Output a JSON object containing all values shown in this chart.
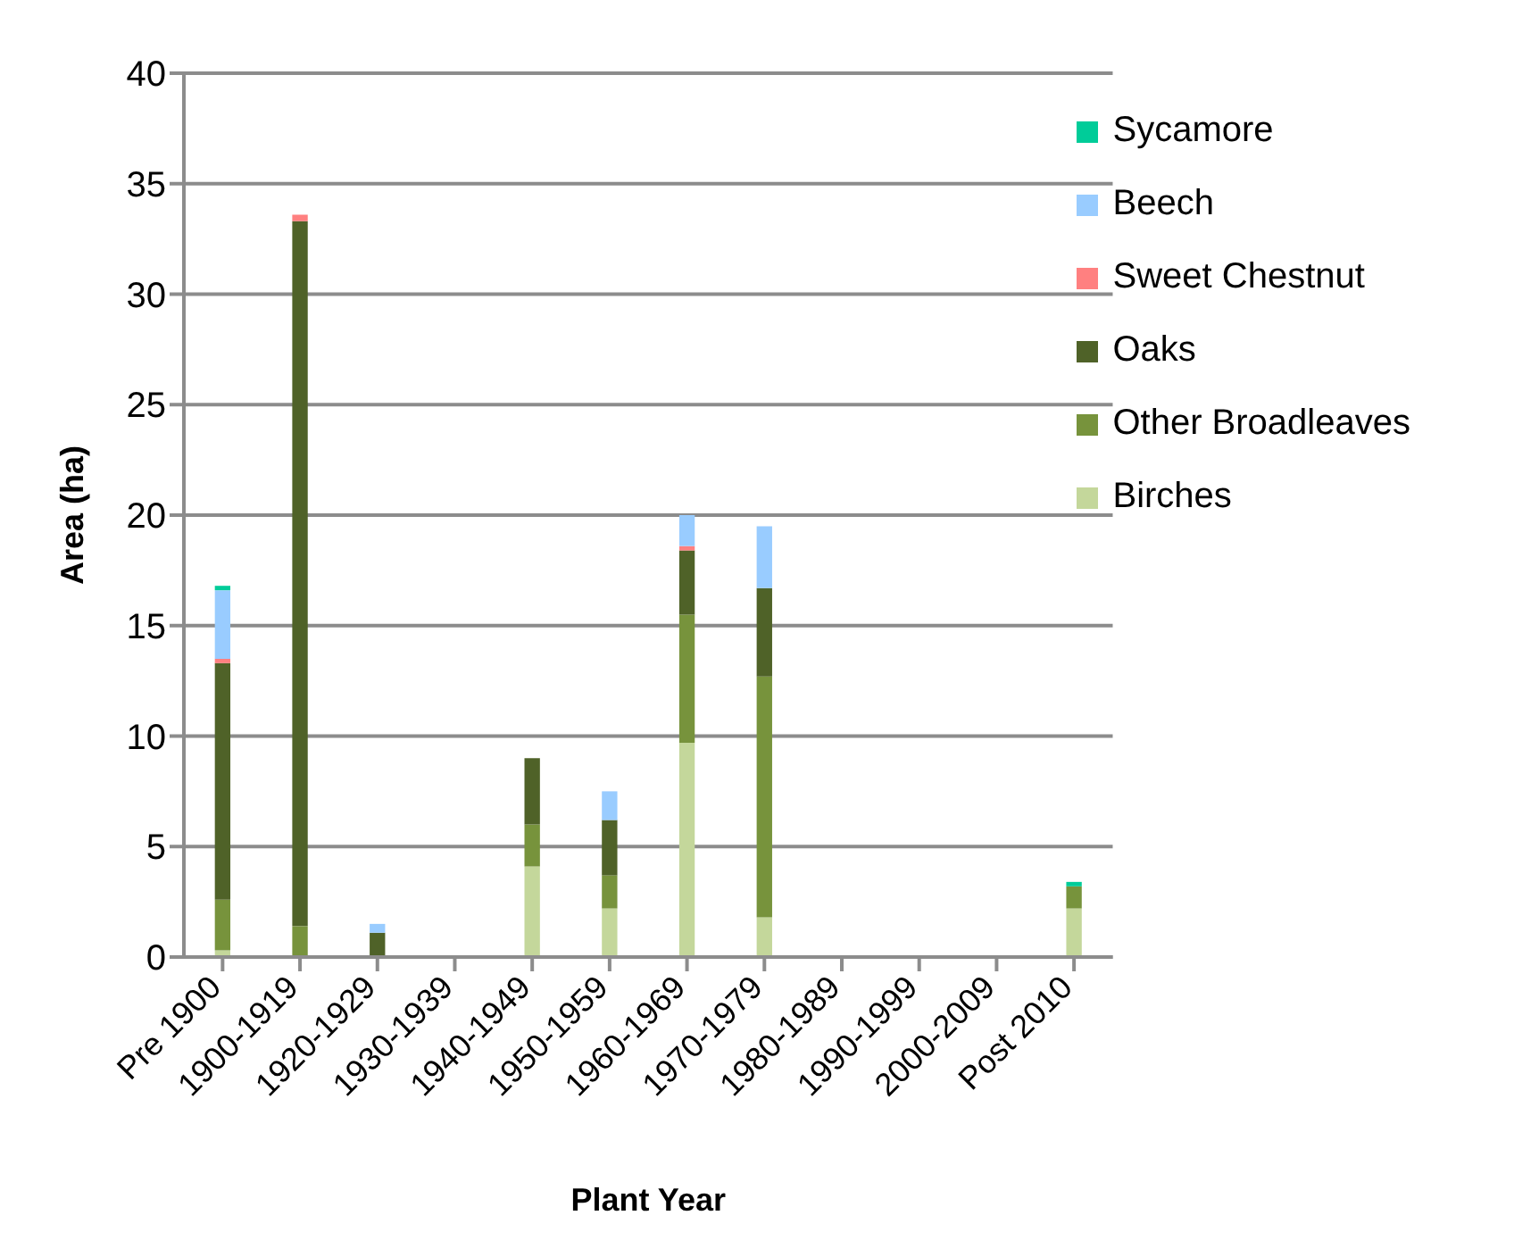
{
  "chart_data": {
    "type": "bar",
    "stacked": true,
    "xlabel": "Plant Year",
    "ylabel": "Area (ha)",
    "categories": [
      "Pre 1900",
      "1900-1919",
      "1920-1929",
      "1930-1939",
      "1940-1949",
      "1950-1959",
      "1960-1969",
      "1970-1979",
      "1980-1989",
      "1990-1999",
      "2000-2009",
      "Post 2010"
    ],
    "series": [
      {
        "name": "Birches",
        "color": "#c4d79b",
        "values": [
          0.3,
          0,
          0,
          0,
          4.1,
          2.2,
          9.7,
          1.8,
          0,
          0,
          0,
          2.2
        ]
      },
      {
        "name": "Other Broadleaves",
        "color": "#77933c",
        "values": [
          2.3,
          1.4,
          0,
          0,
          1.9,
          1.5,
          5.8,
          10.9,
          0,
          0,
          0,
          1.0
        ]
      },
      {
        "name": "Oaks",
        "color": "#4f6228",
        "values": [
          10.7,
          31.9,
          1.1,
          0,
          3.0,
          2.5,
          2.9,
          4.0,
          0,
          0,
          0,
          0
        ]
      },
      {
        "name": "Sweet Chestnut",
        "color": "#ff8080",
        "values": [
          0.2,
          0.3,
          0,
          0,
          0,
          0,
          0.2,
          0,
          0,
          0,
          0,
          0
        ]
      },
      {
        "name": "Beech",
        "color": "#99ccff",
        "values": [
          3.1,
          0,
          0.4,
          0,
          0,
          1.3,
          1.4,
          2.8,
          0,
          0,
          0,
          0
        ]
      },
      {
        "name": "Sycamore",
        "color": "#00cc99",
        "values": [
          0.2,
          0,
          0,
          0,
          0,
          0,
          0,
          0,
          0,
          0,
          0,
          0.2
        ]
      }
    ],
    "ylim": [
      0,
      40
    ],
    "yticks": [
      0,
      5,
      10,
      15,
      20,
      25,
      30,
      35,
      40
    ],
    "grid": "y",
    "legend": "top right"
  }
}
